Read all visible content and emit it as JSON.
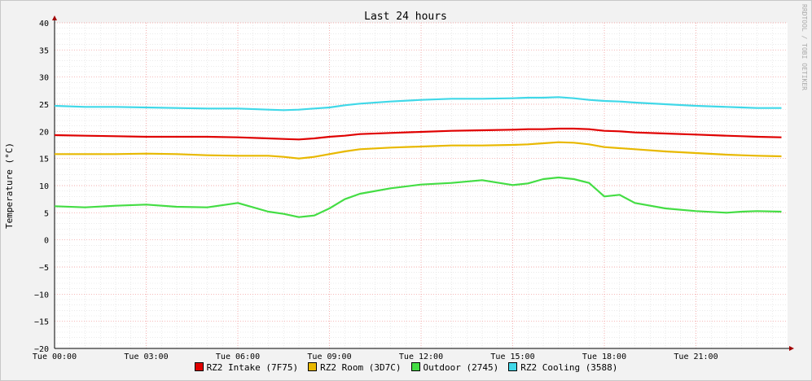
{
  "watermark": "RRDTOOL / TOBI OETIKER",
  "chart_data": {
    "type": "line",
    "title": "Last 24 hours",
    "ylabel": "Temperature (°C)",
    "xlabel": "",
    "ylim": [
      -20,
      40
    ],
    "xlim": [
      0,
      24
    ],
    "yticks": [
      -20,
      -15,
      -10,
      -5,
      0,
      5,
      10,
      15,
      20,
      25,
      30,
      35,
      40
    ],
    "xticks": [
      {
        "x": 0,
        "label": "Tue 00:00"
      },
      {
        "x": 3,
        "label": "Tue 03:00"
      },
      {
        "x": 6,
        "label": "Tue 06:00"
      },
      {
        "x": 9,
        "label": "Tue 09:00"
      },
      {
        "x": 12,
        "label": "Tue 12:00"
      },
      {
        "x": 15,
        "label": "Tue 15:00"
      },
      {
        "x": 18,
        "label": "Tue 18:00"
      },
      {
        "x": 21,
        "label": "Tue 21:00"
      }
    ],
    "grid": true,
    "legend_position": "bottom",
    "x": [
      0,
      1,
      2,
      3,
      4,
      5,
      6,
      7,
      7.5,
      8,
      8.5,
      9,
      9.5,
      10,
      11,
      12,
      13,
      14,
      15,
      15.5,
      16,
      16.5,
      17,
      17.5,
      18,
      18.5,
      19,
      20,
      21,
      22,
      22.5,
      23,
      23.8
    ],
    "series": [
      {
        "name": "RZ2 Intake (7F75)",
        "color": "#e00000",
        "values": [
          19.3,
          19.2,
          19.1,
          19.0,
          19.0,
          19.0,
          18.9,
          18.7,
          18.6,
          18.5,
          18.7,
          19.0,
          19.2,
          19.5,
          19.7,
          19.9,
          20.1,
          20.2,
          20.3,
          20.4,
          20.4,
          20.5,
          20.5,
          20.4,
          20.1,
          20.0,
          19.8,
          19.6,
          19.4,
          19.2,
          19.1,
          19.0,
          18.9
        ]
      },
      {
        "name": "RZ2 Room (3D7C)",
        "color": "#e8b800",
        "values": [
          15.8,
          15.8,
          15.8,
          15.9,
          15.8,
          15.6,
          15.5,
          15.5,
          15.3,
          15.0,
          15.3,
          15.8,
          16.3,
          16.7,
          17.0,
          17.2,
          17.4,
          17.4,
          17.5,
          17.6,
          17.8,
          18.0,
          17.9,
          17.6,
          17.1,
          16.9,
          16.7,
          16.3,
          16.0,
          15.7,
          15.6,
          15.5,
          15.4
        ]
      },
      {
        "name": "Outdoor (2745)",
        "color": "#44dd44",
        "values": [
          6.2,
          6.0,
          6.3,
          6.5,
          6.1,
          6.0,
          6.8,
          5.2,
          4.8,
          4.2,
          4.5,
          5.8,
          7.5,
          8.5,
          9.5,
          10.2,
          10.5,
          11.0,
          10.1,
          10.4,
          11.2,
          11.5,
          11.2,
          10.5,
          8.0,
          8.3,
          6.8,
          5.8,
          5.3,
          5.0,
          5.2,
          5.3,
          5.2
        ]
      },
      {
        "name": "RZ2 Cooling (3588)",
        "color": "#40d8e8",
        "values": [
          24.7,
          24.5,
          24.5,
          24.4,
          24.3,
          24.2,
          24.2,
          24.0,
          23.9,
          24.0,
          24.2,
          24.4,
          24.8,
          25.1,
          25.5,
          25.8,
          26.0,
          26.0,
          26.1,
          26.2,
          26.2,
          26.3,
          26.1,
          25.8,
          25.6,
          25.5,
          25.3,
          25.0,
          24.7,
          24.5,
          24.4,
          24.3,
          24.3
        ]
      }
    ]
  }
}
